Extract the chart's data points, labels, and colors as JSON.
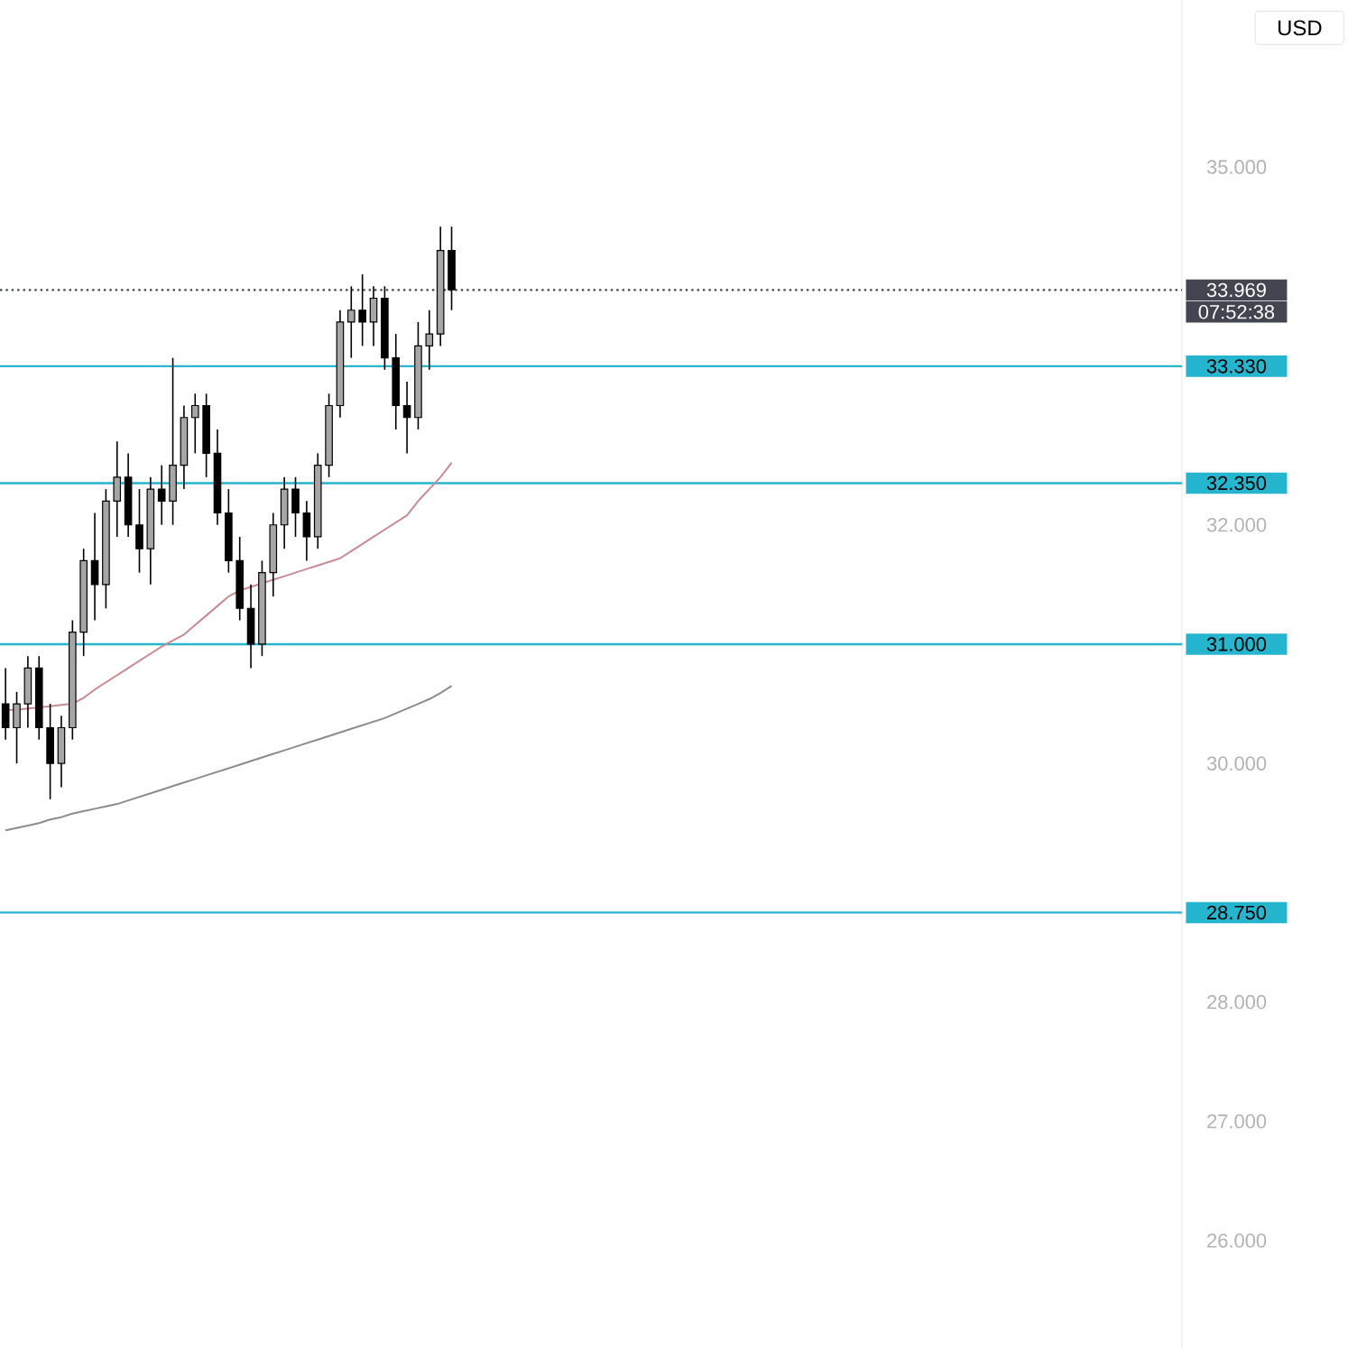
{
  "chart_data": {
    "type": "candlestick",
    "categories": [
      null,
      null,
      null,
      null,
      null,
      null,
      null,
      null,
      null,
      null,
      null,
      null,
      null,
      null,
      null,
      null,
      null,
      null,
      null,
      null,
      null,
      null,
      null,
      null,
      null,
      null,
      null,
      null,
      null,
      null,
      null,
      null,
      null,
      null,
      null,
      null,
      null,
      null,
      null,
      null,
      null,
      null,
      null,
      null,
      null,
      null,
      null,
      null,
      null,
      null,
      null,
      null,
      null,
      null,
      null,
      null,
      null,
      null,
      null,
      null,
      null,
      null,
      null,
      null,
      null,
      null,
      null,
      null,
      null,
      null,
      null,
      null,
      null,
      null,
      null,
      null,
      null,
      null,
      null,
      null,
      null,
      null,
      null,
      null,
      null,
      null,
      null,
      null,
      null,
      null,
      null,
      null,
      null,
      null,
      null,
      null,
      null,
      null,
      null,
      null,
      null,
      null,
      null,
      null,
      null,
      null
    ],
    "ohlc": [
      [
        30.5,
        30.8,
        30.2,
        30.3
      ],
      [
        30.3,
        30.6,
        30.0,
        30.5
      ],
      [
        30.5,
        30.9,
        30.3,
        30.8
      ],
      [
        30.8,
        30.9,
        30.2,
        30.3
      ],
      [
        30.3,
        30.5,
        29.7,
        30.0
      ],
      [
        30.0,
        30.4,
        29.8,
        30.3
      ],
      [
        30.3,
        31.2,
        30.2,
        31.1
      ],
      [
        31.1,
        31.8,
        30.9,
        31.7
      ],
      [
        31.7,
        32.1,
        31.2,
        31.5
      ],
      [
        31.5,
        32.3,
        31.3,
        32.2
      ],
      [
        32.2,
        32.7,
        31.9,
        32.4
      ],
      [
        32.4,
        32.6,
        31.9,
        32.0
      ],
      [
        32.0,
        32.3,
        31.6,
        31.8
      ],
      [
        31.8,
        32.4,
        31.5,
        32.3
      ],
      [
        32.3,
        32.5,
        32.0,
        32.2
      ],
      [
        32.2,
        33.4,
        32.0,
        32.5
      ],
      [
        32.5,
        33.0,
        32.3,
        32.9
      ],
      [
        32.9,
        33.1,
        32.6,
        33.0
      ],
      [
        33.0,
        33.1,
        32.4,
        32.6
      ],
      [
        32.6,
        32.8,
        32.0,
        32.1
      ],
      [
        32.1,
        32.3,
        31.6,
        31.7
      ],
      [
        31.7,
        31.9,
        31.2,
        31.3
      ],
      [
        31.3,
        31.5,
        30.8,
        31.0
      ],
      [
        31.0,
        31.7,
        30.9,
        31.6
      ],
      [
        31.6,
        32.1,
        31.4,
        32.0
      ],
      [
        32.0,
        32.4,
        31.8,
        32.3
      ],
      [
        32.3,
        32.4,
        31.9,
        32.1
      ],
      [
        32.1,
        32.2,
        31.7,
        31.9
      ],
      [
        31.9,
        32.6,
        31.8,
        32.5
      ],
      [
        32.5,
        33.1,
        32.4,
        33.0
      ],
      [
        33.0,
        33.8,
        32.9,
        33.7
      ],
      [
        33.7,
        34.0,
        33.4,
        33.8
      ],
      [
        33.8,
        34.1,
        33.5,
        33.7
      ],
      [
        33.7,
        34.0,
        33.5,
        33.9
      ],
      [
        33.9,
        34.0,
        33.3,
        33.4
      ],
      [
        33.4,
        33.6,
        32.8,
        33.0
      ],
      [
        33.0,
        33.2,
        32.6,
        32.9
      ],
      [
        32.9,
        33.7,
        32.8,
        33.5
      ],
      [
        33.5,
        33.8,
        33.3,
        33.6
      ],
      [
        33.6,
        34.5,
        33.5,
        34.3
      ],
      [
        34.3,
        34.5,
        33.8,
        33.97
      ],
      null,
      null,
      null,
      null,
      null,
      null,
      null,
      null,
      null,
      null,
      null,
      null,
      null,
      null,
      null,
      null,
      null,
      null,
      null,
      null,
      null,
      null,
      null,
      null,
      null,
      null,
      null,
      null,
      null,
      null,
      null,
      null,
      null,
      null,
      null,
      null,
      null,
      null,
      null,
      null,
      null,
      null,
      null,
      null,
      null,
      null,
      null,
      null,
      null,
      null,
      null,
      null,
      null,
      null,
      null,
      null,
      null,
      null,
      null,
      null,
      null,
      null,
      null,
      null,
      null
    ],
    "series": [
      {
        "type": "line",
        "color": "#c98a93",
        "values": [
          30.45,
          30.45,
          30.46,
          30.47,
          30.48,
          30.49,
          30.5,
          30.55,
          30.62,
          30.68,
          30.74,
          30.8,
          30.86,
          30.92,
          30.98,
          31.03,
          31.08,
          31.16,
          31.24,
          31.32,
          31.4,
          31.45,
          31.48,
          31.51,
          31.54,
          31.57,
          31.6,
          31.63,
          31.66,
          31.69,
          31.72,
          31.78,
          31.84,
          31.9,
          31.96,
          32.02,
          32.08,
          32.2,
          32.3,
          32.4,
          32.52,
          null,
          null,
          null,
          null,
          null,
          null,
          null,
          null,
          null,
          null,
          null,
          null,
          null,
          null,
          null,
          null,
          null,
          null,
          null,
          null,
          null,
          null,
          null,
          null,
          null,
          null,
          null,
          null,
          null,
          null,
          null,
          null,
          null,
          null,
          null,
          null,
          null,
          null,
          null,
          null,
          null,
          null,
          null,
          null,
          null,
          null,
          null,
          null,
          null,
          null,
          null,
          null,
          null,
          null,
          null,
          null,
          null,
          null,
          null,
          null,
          null,
          null,
          null,
          null,
          null
        ]
      },
      {
        "type": "line",
        "color": "#8c8c8c",
        "values": [
          29.44,
          29.46,
          29.48,
          29.5,
          29.53,
          29.55,
          29.58,
          29.6,
          29.62,
          29.64,
          29.66,
          29.69,
          29.72,
          29.75,
          29.78,
          29.81,
          29.84,
          29.87,
          29.9,
          29.93,
          29.96,
          29.99,
          30.02,
          30.05,
          30.08,
          30.11,
          30.14,
          30.17,
          30.2,
          30.23,
          30.26,
          30.29,
          30.32,
          30.35,
          30.38,
          30.42,
          30.46,
          30.5,
          30.54,
          30.59,
          30.65,
          null,
          null,
          null,
          null,
          null,
          null,
          null,
          null,
          null,
          null,
          null,
          null,
          null,
          null,
          null,
          null,
          null,
          null,
          null,
          null,
          null,
          null,
          null,
          null,
          null,
          null,
          null,
          null,
          null,
          null,
          null,
          null,
          null,
          null,
          null,
          null,
          null,
          null,
          null,
          null,
          null,
          null,
          null,
          null,
          null,
          null,
          null,
          null,
          null,
          null,
          null,
          null,
          null,
          null,
          null,
          null,
          null,
          null,
          null,
          null,
          null,
          null,
          null,
          null,
          null
        ]
      }
    ],
    "ylim": [
      25.1,
      36.4
    ],
    "yticks": [
      {
        "value": 26,
        "label": "26.000"
      },
      {
        "value": 27,
        "label": "27.000"
      },
      {
        "value": 28,
        "label": "28.000"
      },
      {
        "value": 30,
        "label": "30.000"
      },
      {
        "value": 32,
        "label": "32.000"
      },
      {
        "value": 35,
        "label": "35.000"
      }
    ],
    "tick_labels": "y",
    "grid": false,
    "ref_lines": [
      {
        "axis": "y",
        "value": 33.969,
        "label": "33.969",
        "color": "#434651",
        "line_style": "dotted"
      },
      {
        "axis": "y",
        "value": 33.33,
        "label": "33.330",
        "color": "#26b5cf"
      },
      {
        "axis": "y",
        "value": 32.35,
        "label": "32.350",
        "color": "#26b5cf"
      },
      {
        "axis": "y",
        "value": 31.0,
        "label": "31.000",
        "color": "#26b5cf"
      },
      {
        "axis": "y",
        "value": 28.75,
        "label": "28.750",
        "color": "#26b5cf"
      }
    ],
    "annotations": [
      "USD",
      "07:52:38"
    ]
  }
}
